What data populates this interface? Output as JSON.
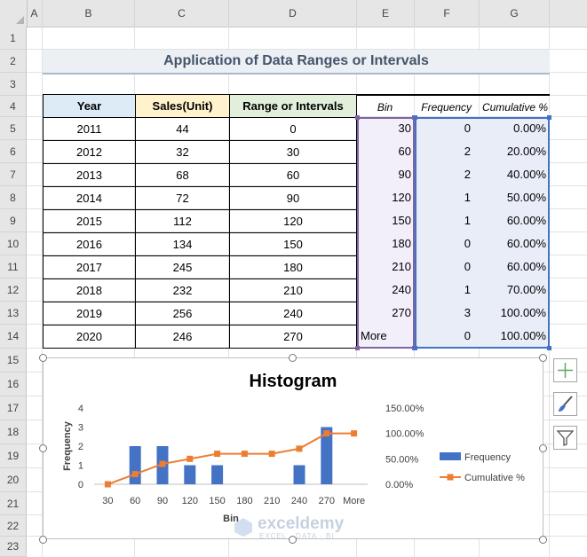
{
  "columns": [
    "A",
    "B",
    "C",
    "D",
    "E",
    "F",
    "G"
  ],
  "rows": [
    "1",
    "2",
    "3",
    "4",
    "5",
    "6",
    "7",
    "8",
    "9",
    "10",
    "11",
    "12",
    "13",
    "14",
    "15",
    "16",
    "17",
    "18",
    "19",
    "20",
    "21",
    "22",
    "23"
  ],
  "title": "Application of Data Ranges or Intervals",
  "table": {
    "headers": [
      "Year",
      "Sales(Unit)",
      "Range or Intervals"
    ],
    "rows": [
      [
        "2011",
        "44",
        "0"
      ],
      [
        "2012",
        "32",
        "30"
      ],
      [
        "2013",
        "68",
        "60"
      ],
      [
        "2014",
        "72",
        "90"
      ],
      [
        "2015",
        "112",
        "120"
      ],
      [
        "2016",
        "134",
        "150"
      ],
      [
        "2017",
        "245",
        "180"
      ],
      [
        "2018",
        "232",
        "210"
      ],
      [
        "2019",
        "256",
        "240"
      ],
      [
        "2020",
        "246",
        "270"
      ]
    ]
  },
  "output": {
    "headers": [
      "Bin",
      "Frequency",
      "Cumulative %"
    ],
    "rows": [
      [
        "30",
        "0",
        "0.00%"
      ],
      [
        "60",
        "2",
        "20.00%"
      ],
      [
        "90",
        "2",
        "40.00%"
      ],
      [
        "120",
        "1",
        "50.00%"
      ],
      [
        "150",
        "1",
        "60.00%"
      ],
      [
        "180",
        "0",
        "60.00%"
      ],
      [
        "210",
        "0",
        "60.00%"
      ],
      [
        "240",
        "1",
        "70.00%"
      ],
      [
        "270",
        "3",
        "100.00%"
      ],
      [
        "More",
        "0",
        "100.00%"
      ]
    ]
  },
  "chart_data": {
    "type": "bar",
    "title": "Histogram",
    "xlabel": "Bin",
    "ylabel": "Frequency",
    "categories": [
      "30",
      "60",
      "90",
      "120",
      "150",
      "180",
      "210",
      "240",
      "270",
      "More"
    ],
    "series": [
      {
        "name": "Frequency",
        "type": "bar",
        "values": [
          0,
          2,
          2,
          1,
          1,
          0,
          0,
          1,
          3,
          0
        ],
        "color": "#4472c4"
      },
      {
        "name": "Cumulative %",
        "type": "line",
        "values": [
          0,
          20,
          40,
          50,
          60,
          60,
          60,
          70,
          100,
          100
        ],
        "color": "#ed7d31"
      }
    ],
    "y_ticks": [
      "0",
      "1",
      "2",
      "3",
      "4"
    ],
    "y2_ticks": [
      "0.00%",
      "50.00%",
      "100.00%",
      "150.00%"
    ],
    "ylim": [
      0,
      4
    ],
    "y2lim": [
      0,
      150
    ],
    "legend": "right",
    "grid": false
  },
  "watermark": {
    "brand": "exceldemy",
    "tagline": "EXCEL · DATA · BI"
  },
  "colors": {
    "bar": "#4472c4",
    "line": "#ed7d31",
    "title": "#44546a"
  }
}
